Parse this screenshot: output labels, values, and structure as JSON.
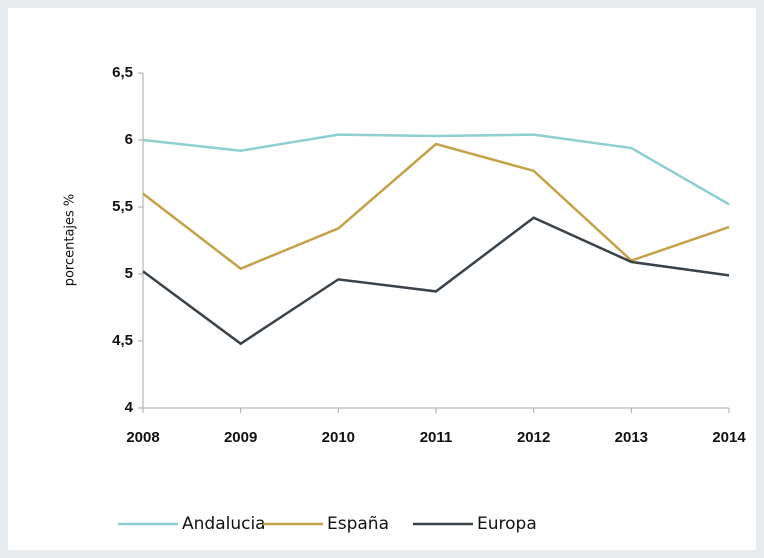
{
  "chart_data": {
    "type": "line",
    "y_label": "porcentajes %",
    "x": [
      "2008",
      "2009",
      "2010",
      "2011",
      "2012",
      "2013",
      "2014"
    ],
    "series": [
      {
        "name": "Andalucia",
        "color": "#8fcfcf",
        "values": [
          6.0,
          5.92,
          6.04,
          6.03,
          6.04,
          5.94,
          5.52
        ]
      },
      {
        "name": "España",
        "color": "#c4a24a",
        "values": [
          5.6,
          5.04,
          5.34,
          5.97,
          5.77,
          5.1,
          5.35
        ]
      },
      {
        "name": "Europa",
        "color": "#3a434a",
        "values": [
          5.02,
          4.48,
          4.96,
          4.87,
          5.42,
          5.09,
          4.99
        ]
      }
    ],
    "ylim": [
      4,
      6.5
    ],
    "yticks": [
      4,
      {
        "value": 4.5,
        "label": "4,5"
      },
      5,
      {
        "value": 5.5,
        "label": "5,5"
      },
      6,
      {
        "value": 6.5,
        "label": "6,5"
      }
    ],
    "legend": "bottom"
  }
}
